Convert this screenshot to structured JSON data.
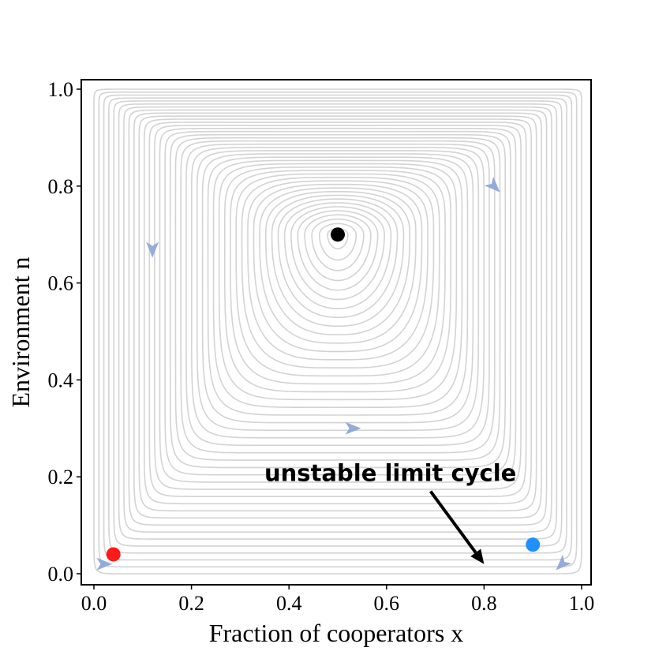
{
  "chart_data": {
    "type": "streamplot",
    "xlabel": "Fraction of cooperators x",
    "ylabel": "Environment n",
    "xlim": [
      0.0,
      1.0
    ],
    "ylim": [
      0.0,
      1.0
    ],
    "xticks": [
      "0.0",
      "0.2",
      "0.4",
      "0.6",
      "0.8",
      "1.0"
    ],
    "yticks": [
      "0.0",
      "0.2",
      "0.4",
      "0.6",
      "0.8",
      "1.0"
    ],
    "grid": false,
    "streamline_color": "#d3d3d3",
    "arrow_color": "#8fa7d8",
    "orbit_center": [
      0.5,
      0.7
    ],
    "orbit_direction": "clockwise",
    "arrows": [
      {
        "x": 0.02,
        "y": 0.02,
        "direction": "right"
      },
      {
        "x": 0.12,
        "y": 0.67,
        "direction": "down"
      },
      {
        "x": 0.53,
        "y": 0.3,
        "direction": "right"
      },
      {
        "x": 0.82,
        "y": 0.8,
        "direction": "down-right"
      },
      {
        "x": 0.96,
        "y": 0.02,
        "direction": "down-left"
      }
    ],
    "points": [
      {
        "x": 0.5,
        "y": 0.7,
        "color": "#000000"
      },
      {
        "x": 0.04,
        "y": 0.04,
        "color": "#ff1a1a"
      },
      {
        "x": 0.9,
        "y": 0.06,
        "color": "#1e90ff"
      }
    ],
    "annotations": [
      {
        "text": "unstable limit cycle",
        "text_x": 0.39,
        "text_y": 0.195,
        "arrow_to": [
          0.8,
          0.02
        ]
      }
    ]
  }
}
